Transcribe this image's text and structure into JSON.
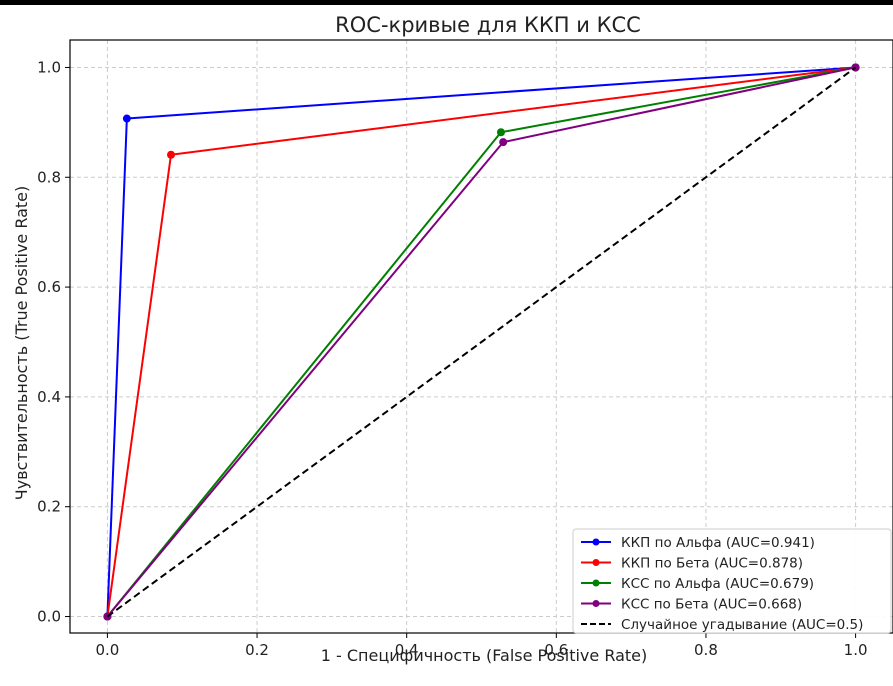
{
  "chart_data": {
    "type": "line",
    "title": "ROC-кривые для ККП и КСС",
    "xlabel": "1 - Специфичность (False Positive Rate)",
    "ylabel": "Чувствительность (True Positive Rate)",
    "xlim": [
      -0.05,
      1.05
    ],
    "ylim": [
      -0.03,
      1.05
    ],
    "xticks": [
      "0.0",
      "0.2",
      "0.4",
      "0.6",
      "0.8",
      "1.0"
    ],
    "yticks": [
      "0.0",
      "0.2",
      "0.4",
      "0.6",
      "0.8",
      "1.0"
    ],
    "grid": true,
    "legend_position": "bottom-right",
    "series": [
      {
        "name": "ККП по Альфа (AUC=0.941)",
        "color": "#0000ff",
        "x": [
          0.0,
          0.026,
          1.0
        ],
        "y": [
          0.0,
          0.907,
          1.0
        ],
        "markers": true,
        "dash": false
      },
      {
        "name": "ККП по Бета (AUC=0.878)",
        "color": "#ff0000",
        "x": [
          0.0,
          0.085,
          1.0
        ],
        "y": [
          0.0,
          0.841,
          1.0
        ],
        "markers": true,
        "dash": false
      },
      {
        "name": "КСС по Альфа (AUC=0.679)",
        "color": "#008000",
        "x": [
          0.0,
          0.526,
          1.0
        ],
        "y": [
          0.0,
          0.882,
          1.0
        ],
        "markers": true,
        "dash": false
      },
      {
        "name": "КСС по Бета (AUC=0.668)",
        "color": "#800080",
        "x": [
          0.0,
          0.529,
          1.0
        ],
        "y": [
          0.0,
          0.864,
          1.0
        ],
        "markers": true,
        "dash": false
      },
      {
        "name": "Случайное угадывание (AUC=0.5)",
        "color": "#000000",
        "x": [
          0.0,
          1.0
        ],
        "y": [
          0.0,
          1.0
        ],
        "markers": false,
        "dash": true
      }
    ]
  }
}
